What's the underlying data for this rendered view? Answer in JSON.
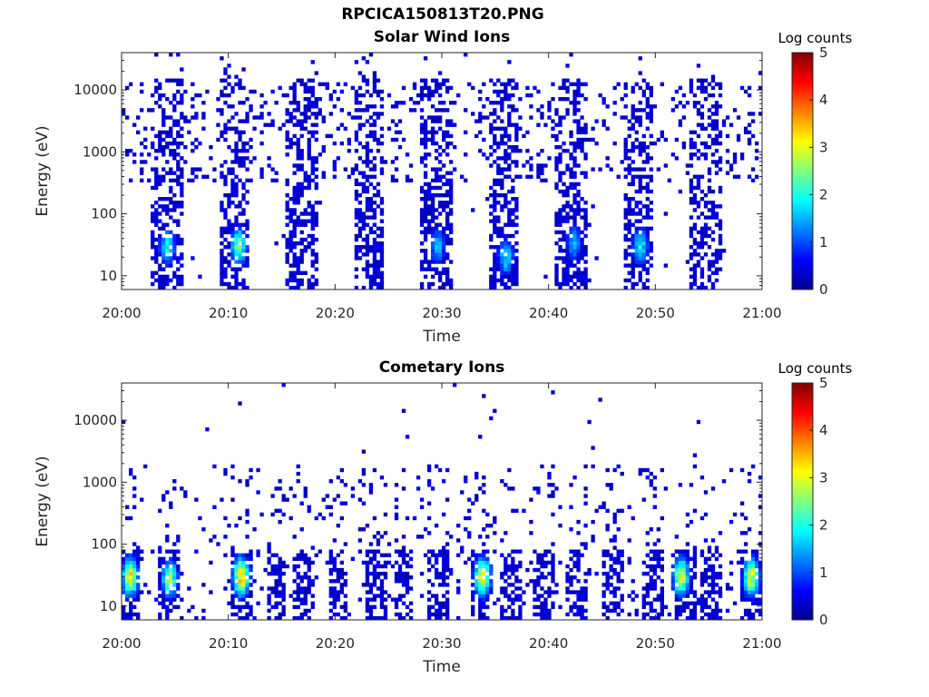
{
  "figure_title": "RPCICA150813T20.PNG",
  "chart_data": [
    {
      "type": "heatmap",
      "title": "Solar Wind Ions",
      "xlabel": "Time",
      "ylabel": "Energy (eV)",
      "x_ticks": [
        "20:00",
        "20:10",
        "20:20",
        "20:30",
        "20:40",
        "20:50",
        "21:00"
      ],
      "x_range_minutes": [
        0,
        60
      ],
      "y_ticks": [
        "10",
        "100",
        "1000",
        "10000"
      ],
      "y_scale": "log",
      "ylim": [
        6,
        40000
      ],
      "colorbar": {
        "label": "Log counts",
        "ticks": [
          "0",
          "1",
          "2",
          "3",
          "4",
          "5"
        ],
        "range": [
          0,
          5
        ],
        "colormap": "jet"
      },
      "features": {
        "sweep_center_minutes": [
          4.3,
          10.6,
          16.9,
          23.2,
          29.5,
          35.8,
          42.1,
          48.4,
          54.7
        ],
        "sweep_width_minutes": 3.0,
        "background_energy_range_eV": [
          300,
          12000
        ],
        "hotspots": [
          {
            "time_min": 4.3,
            "energy_eV": 30,
            "log_counts": 2.2
          },
          {
            "time_min": 11.0,
            "energy_eV": 30,
            "log_counts": 2.8
          },
          {
            "time_min": 29.6,
            "energy_eV": 30,
            "log_counts": 1.8
          },
          {
            "time_min": 36.0,
            "energy_eV": 20,
            "log_counts": 2.0
          },
          {
            "time_min": 42.4,
            "energy_eV": 35,
            "log_counts": 1.8
          },
          {
            "time_min": 48.6,
            "energy_eV": 30,
            "log_counts": 2.2
          }
        ]
      }
    },
    {
      "type": "heatmap",
      "title": "Cometary Ions",
      "xlabel": "Time",
      "ylabel": "Energy (eV)",
      "x_ticks": [
        "20:00",
        "20:10",
        "20:20",
        "20:30",
        "20:40",
        "20:50",
        "21:00"
      ],
      "x_range_minutes": [
        0,
        60
      ],
      "y_ticks": [
        "10",
        "100",
        "1000",
        "10000"
      ],
      "y_scale": "log",
      "ylim": [
        6,
        40000
      ],
      "colorbar": {
        "label": "Log counts",
        "ticks": [
          "0",
          "1",
          "2",
          "3",
          "4",
          "5"
        ],
        "range": [
          0,
          5
        ],
        "colormap": "jet"
      },
      "features": {
        "band_center_minutes": [
          0.8,
          4.3,
          11.2,
          14.5,
          17.1,
          20.3,
          23.8,
          26.4,
          29.8,
          33.6,
          36.5,
          39.6,
          42.7,
          46.1,
          49.8,
          52.7,
          55.3,
          58.9
        ],
        "band_energy_range_eV": [
          6,
          80
        ],
        "scatter_energy_range_eV": [
          100,
          2000
        ],
        "hotspots": [
          {
            "time_min": 0.8,
            "energy_eV": 30,
            "log_counts": 3.6
          },
          {
            "time_min": 4.5,
            "energy_eV": 28,
            "log_counts": 3.0
          },
          {
            "time_min": 11.2,
            "energy_eV": 30,
            "log_counts": 3.9
          },
          {
            "time_min": 33.8,
            "energy_eV": 30,
            "log_counts": 3.6
          },
          {
            "time_min": 52.4,
            "energy_eV": 30,
            "log_counts": 3.4
          },
          {
            "time_min": 59.0,
            "energy_eV": 30,
            "log_counts": 3.5
          }
        ]
      }
    }
  ]
}
